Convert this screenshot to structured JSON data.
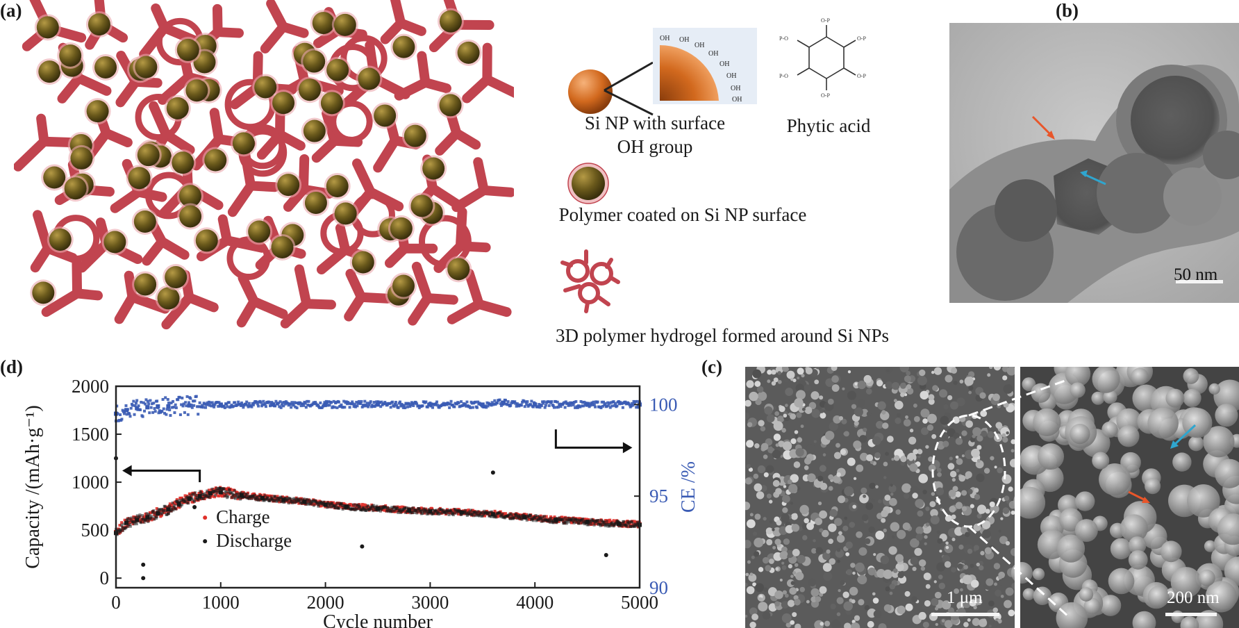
{
  "panels": {
    "a": {
      "label": "(a)",
      "legend": {
        "si_np": "Si NP with surface",
        "si_np_line2": "OH group",
        "phytic": "Phytic acid",
        "polymer_coated": "Polymer coated on Si NP surface",
        "hydrogel": "3D polymer hydrogel formed around Si NPs",
        "oh_group": "OH"
      }
    },
    "b": {
      "label": "(b)",
      "scalebar": "50 nm"
    },
    "c": {
      "label": "(c)",
      "scalebar_left": "1 μm",
      "scalebar_right": "200 nm"
    },
    "d": {
      "label": "(d)"
    }
  },
  "colors": {
    "polymer": "#c1444f",
    "si_np": "#6b5a1c",
    "charge": "#e0302a",
    "discharge": "#1a1a1a",
    "ce": "#3a5bb4",
    "arrow_orange": "#e8562a",
    "arrow_cyan": "#2fa6cf"
  },
  "chart_data": {
    "type": "scatter",
    "xlabel": "Cycle number",
    "ylabel": "Capacity /(mAh·g⁻¹)",
    "y2label": "CE /%",
    "xlim": [
      0,
      5000
    ],
    "ylim": [
      -100,
      2000
    ],
    "y2lim": [
      90,
      101
    ],
    "xticks": [
      0,
      1000,
      2000,
      3000,
      4000,
      5000
    ],
    "yticks": [
      0,
      500,
      1000,
      1500,
      2000
    ],
    "y2ticks": [
      90,
      95,
      100
    ],
    "legend_position": "center-left",
    "series": [
      {
        "name": "Charge",
        "axis": "left",
        "x": [
          0,
          100,
          200,
          300,
          400,
          500,
          600,
          700,
          800,
          900,
          1000,
          1200,
          1400,
          1600,
          1800,
          2000,
          2200,
          2500,
          2800,
          3000,
          3300,
          3600,
          3900,
          4200,
          4500,
          4800,
          5000
        ],
        "y": [
          480,
          580,
          610,
          640,
          680,
          720,
          780,
          830,
          860,
          890,
          900,
          870,
          840,
          820,
          800,
          770,
          750,
          730,
          710,
          700,
          690,
          670,
          640,
          610,
          590,
          570,
          560
        ]
      },
      {
        "name": "Discharge",
        "axis": "left",
        "x": [
          0,
          100,
          200,
          300,
          400,
          500,
          600,
          700,
          800,
          900,
          1000,
          1200,
          1400,
          1600,
          1800,
          2000,
          2200,
          2500,
          2800,
          3000,
          3300,
          3600,
          3900,
          4200,
          4500,
          4800,
          5000
        ],
        "y": [
          470,
          575,
          605,
          635,
          675,
          715,
          775,
          825,
          855,
          885,
          895,
          865,
          835,
          815,
          795,
          765,
          745,
          725,
          705,
          695,
          685,
          665,
          635,
          605,
          585,
          565,
          555
        ]
      },
      {
        "name": "CE",
        "axis": "right",
        "x": [
          0,
          100,
          200,
          300,
          400,
          500,
          700,
          1000,
          1500,
          2000,
          2500,
          3000,
          3500,
          3700,
          4000,
          4500,
          5000
        ],
        "y": [
          99.5,
          99.7,
          99.8,
          99.85,
          99.9,
          99.9,
          99.95,
          100,
          100,
          100,
          100,
          100,
          100,
          100.1,
          100,
          100,
          100
        ]
      }
    ],
    "outliers_left": [
      {
        "x": 0,
        "y": 1250
      },
      {
        "x": 260,
        "y": 140
      },
      {
        "x": 260,
        "y": 0
      },
      {
        "x": 750,
        "y": 740
      },
      {
        "x": 2350,
        "y": 330
      },
      {
        "x": 3600,
        "y": 1100
      },
      {
        "x": 4680,
        "y": 240
      }
    ]
  }
}
